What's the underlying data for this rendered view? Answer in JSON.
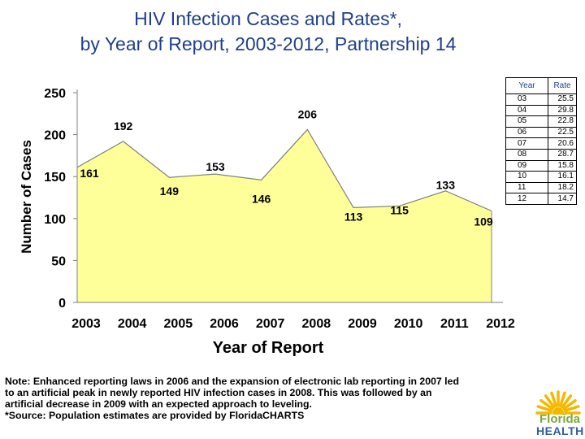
{
  "title": {
    "line1": "HIV Infection Cases and Rates*,",
    "line2": "by Year of Report, 2003-2012, Partnership 14"
  },
  "chart_data": {
    "type": "area",
    "categories": [
      "2003",
      "2004",
      "2005",
      "2006",
      "2007",
      "2008",
      "2009",
      "2010",
      "2011",
      "2012"
    ],
    "values": [
      161,
      192,
      149,
      153,
      146,
      206,
      113,
      115,
      133,
      109
    ],
    "xlabel": "Year of Report",
    "ylabel": "Number of Cases",
    "ylim": [
      0,
      250
    ],
    "yticks": [
      0,
      50,
      100,
      150,
      200,
      250
    ],
    "grid": false,
    "fill_color": "#ffff99",
    "line_color": "#808080"
  },
  "rate_table": {
    "header_year": "Year",
    "header_rate": "Rate",
    "rows": [
      {
        "year": "03",
        "rate": "25.5"
      },
      {
        "year": "04",
        "rate": "29.8"
      },
      {
        "year": "05",
        "rate": "22.8"
      },
      {
        "year": "06",
        "rate": "22.5"
      },
      {
        "year": "07",
        "rate": "20.6"
      },
      {
        "year": "08",
        "rate": "28.7"
      },
      {
        "year": "09",
        "rate": "15.8"
      },
      {
        "year": "10",
        "rate": "16.1"
      },
      {
        "year": "11",
        "rate": "18.2"
      },
      {
        "year": "12",
        "rate": "14.7"
      }
    ]
  },
  "note": {
    "line1": "Note:  Enhanced reporting laws in 2006 and the expansion of electronic lab reporting in 2007 led",
    "line2": "to an artificial peak in newly reported HIV infection cases in 2008.  This was followed by an",
    "line3": "artificial decrease in 2009 with an expected approach to leveling.",
    "line4": "*Source: Population estimates are provided by FloridaCHARTS"
  },
  "logo": {
    "line1": "Florida",
    "line2": "HEALTH",
    "sun_color": "#f5b800"
  }
}
